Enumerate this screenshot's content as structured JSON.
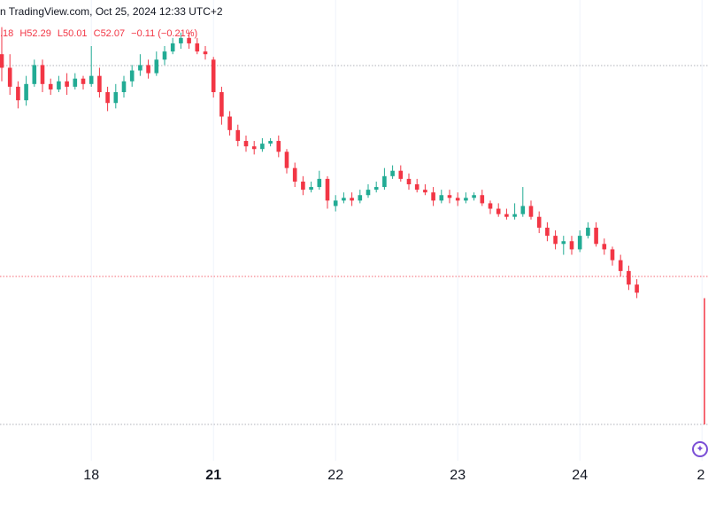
{
  "header": {
    "text": "n TradingView.com, Oct 25, 2024 12:33 UTC+2"
  },
  "ohlc": {
    "open": ".18",
    "high": "H52.29",
    "low": "L50.01",
    "close": "C52.07",
    "change": "−0.11 (−0.21%)"
  },
  "colors": {
    "up": "#22ab94",
    "down": "#f23645",
    "dotted_line": "#9598a1",
    "red_line": "#f23645"
  },
  "chart_data": {
    "type": "candlestick",
    "x_ticks": [
      {
        "label": "18",
        "index": 11,
        "bold": false
      },
      {
        "label": "21",
        "index": 26,
        "bold": true
      },
      {
        "label": "22",
        "index": 41,
        "bold": false
      },
      {
        "label": "23",
        "index": 56,
        "bold": false
      },
      {
        "label": "24",
        "index": 71,
        "bold": false
      },
      {
        "label": "2",
        "index": 86,
        "bold": false
      }
    ],
    "candles": [
      [
        15.0,
        14.5,
        16.0,
        14.0
      ],
      [
        14.5,
        13.8,
        15.0,
        13.5
      ],
      [
        13.8,
        13.3,
        14.0,
        13.0
      ],
      [
        13.3,
        13.9,
        14.2,
        13.1
      ],
      [
        13.9,
        14.6,
        14.8,
        13.8
      ],
      [
        14.6,
        13.9,
        14.8,
        13.6
      ],
      [
        13.9,
        13.7,
        14.1,
        13.5
      ],
      [
        13.7,
        14.0,
        14.2,
        13.6
      ],
      [
        14.0,
        13.8,
        14.3,
        13.5
      ],
      [
        13.8,
        14.1,
        14.3,
        13.7
      ],
      [
        14.1,
        13.9,
        14.2,
        13.7
      ],
      [
        13.9,
        14.2,
        15.3,
        13.8
      ],
      [
        14.2,
        13.6,
        14.5,
        13.4
      ],
      [
        13.6,
        13.2,
        13.8,
        12.9
      ],
      [
        13.2,
        13.6,
        13.9,
        13.0
      ],
      [
        13.6,
        14.0,
        14.2,
        13.4
      ],
      [
        14.0,
        14.4,
        14.6,
        13.8
      ],
      [
        14.4,
        14.6,
        15.0,
        14.2
      ],
      [
        14.6,
        14.3,
        14.8,
        14.1
      ],
      [
        14.3,
        14.8,
        15.1,
        14.2
      ],
      [
        14.8,
        15.1,
        15.3,
        14.6
      ],
      [
        15.1,
        15.4,
        15.6,
        15.0
      ],
      [
        15.4,
        15.6,
        15.8,
        15.2
      ],
      [
        15.6,
        15.4,
        15.8,
        15.2
      ],
      [
        15.4,
        15.1,
        15.6,
        15.0
      ],
      [
        15.1,
        15.0,
        15.3,
        14.8
      ],
      [
        14.8,
        13.6,
        14.9,
        13.4
      ],
      [
        13.6,
        12.7,
        13.8,
        12.4
      ],
      [
        12.7,
        12.2,
        12.9,
        12.0
      ],
      [
        12.2,
        11.8,
        12.4,
        11.6
      ],
      [
        11.8,
        11.6,
        12.0,
        11.4
      ],
      [
        11.6,
        11.5,
        11.8,
        11.3
      ],
      [
        11.5,
        11.7,
        11.9,
        11.4
      ],
      [
        11.7,
        11.8,
        11.9,
        11.6
      ],
      [
        11.8,
        11.4,
        12.0,
        11.2
      ],
      [
        11.4,
        10.8,
        11.5,
        10.6
      ],
      [
        10.8,
        10.3,
        11.0,
        10.1
      ],
      [
        10.3,
        10.0,
        10.5,
        9.8
      ],
      [
        10.0,
        10.1,
        10.3,
        9.9
      ],
      [
        10.1,
        10.4,
        10.7,
        10.0
      ],
      [
        10.4,
        9.6,
        10.5,
        9.3
      ],
      [
        9.4,
        9.6,
        9.8,
        9.2
      ],
      [
        9.6,
        9.7,
        9.9,
        9.5
      ],
      [
        9.7,
        9.6,
        9.9,
        9.4
      ],
      [
        9.6,
        9.8,
        10.0,
        9.5
      ],
      [
        9.8,
        10.0,
        10.2,
        9.7
      ],
      [
        10.0,
        10.1,
        10.3,
        9.9
      ],
      [
        10.1,
        10.5,
        10.8,
        10.0
      ],
      [
        10.5,
        10.7,
        10.9,
        10.4
      ],
      [
        10.7,
        10.4,
        10.9,
        10.3
      ],
      [
        10.4,
        10.2,
        10.6,
        10.0
      ],
      [
        10.2,
        10.0,
        10.4,
        9.9
      ],
      [
        10.0,
        9.9,
        10.2,
        9.8
      ],
      [
        9.9,
        9.6,
        10.1,
        9.4
      ],
      [
        9.6,
        9.8,
        10.0,
        9.5
      ],
      [
        9.8,
        9.7,
        10.0,
        9.5
      ],
      [
        9.7,
        9.6,
        9.9,
        9.4
      ],
      [
        9.6,
        9.7,
        9.9,
        9.5
      ],
      [
        9.7,
        9.8,
        9.9,
        9.6
      ],
      [
        9.8,
        9.5,
        10.0,
        9.4
      ],
      [
        9.5,
        9.3,
        9.6,
        9.1
      ],
      [
        9.3,
        9.1,
        9.5,
        9.0
      ],
      [
        9.1,
        9.0,
        9.3,
        8.9
      ],
      [
        9.0,
        9.1,
        9.5,
        8.9
      ],
      [
        9.1,
        9.4,
        10.1,
        9.0
      ],
      [
        9.4,
        9.0,
        9.6,
        8.9
      ],
      [
        9.0,
        8.6,
        9.2,
        8.4
      ],
      [
        8.6,
        8.3,
        8.8,
        8.1
      ],
      [
        8.3,
        8.0,
        8.5,
        7.8
      ],
      [
        8.0,
        8.1,
        8.3,
        7.6
      ],
      [
        8.1,
        7.8,
        8.3,
        7.6
      ],
      [
        7.8,
        8.3,
        8.5,
        7.7
      ],
      [
        8.3,
        8.6,
        8.8,
        8.2
      ],
      [
        8.6,
        8.0,
        8.8,
        7.9
      ],
      [
        8.0,
        7.8,
        8.2,
        7.6
      ],
      [
        7.8,
        7.4,
        7.9,
        7.2
      ],
      [
        7.4,
        7.0,
        7.6,
        6.8
      ],
      [
        7.0,
        6.5,
        7.2,
        6.3
      ],
      [
        6.5,
        6.2,
        6.7,
        6.0
      ]
    ],
    "y_range": [
      0.0,
      17.0
    ]
  }
}
